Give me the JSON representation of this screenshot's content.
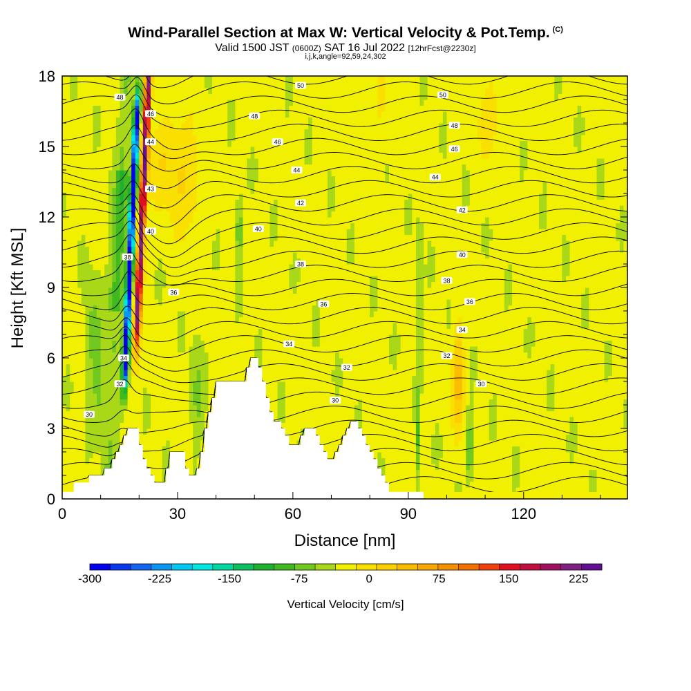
{
  "title": "Wind-Parallel Section at Max W: Vertical Velocity & Pot.Temp.",
  "title_mark": "(C)",
  "subtitle_main": "Valid 1500 JST",
  "subtitle_utc": "(0600Z)",
  "subtitle_date": "SAT 16 Jul 2022",
  "subtitle_fcst": "[12hrFcst@2230z]",
  "subline": "i,j,k,angle=92,59,24,302",
  "chart_data": {
    "type": "heatmap",
    "title": "Wind-Parallel Section at Max W: Vertical Velocity & Pot.Temp.",
    "xlabel": "Distance [nm]",
    "ylabel": "Height [Kft MSL]",
    "xlim": [
      0,
      147
    ],
    "ylim": [
      0,
      18
    ],
    "x_ticks": [
      0,
      30,
      60,
      90,
      120
    ],
    "y_ticks": [
      0,
      3,
      6,
      9,
      12,
      15,
      18
    ],
    "x_tick_labels": [
      "0",
      "30",
      "60",
      "90",
      "120"
    ],
    "y_tick_labels": [
      "0",
      "3",
      "6",
      "9",
      "12",
      "15",
      "18"
    ],
    "colorbar": {
      "title": "Vertical Velocity [cm/s]",
      "min": -300,
      "max": 250,
      "step": 25,
      "tick_values": [
        -300,
        -225,
        -150,
        -75,
        0,
        75,
        150,
        225
      ],
      "tick_labels": [
        "-300",
        "-225",
        "-150",
        "-75",
        "0",
        "75",
        "150",
        "225"
      ],
      "colors": [
        "#0000ee",
        "#0a38ee",
        "#1464f0",
        "#0a96f0",
        "#00c8f0",
        "#00e6e0",
        "#00d8a0",
        "#10c060",
        "#20b030",
        "#40b820",
        "#70c820",
        "#a8d818",
        "#f0f000",
        "#fae000",
        "#fcd000",
        "#fcbc00",
        "#f8a800",
        "#f49000",
        "#f07000",
        "#f04010",
        "#e01020",
        "#c01040",
        "#a01060",
        "#802080",
        "#601090"
      ]
    },
    "terrain": [
      [
        0,
        0.3
      ],
      [
        3,
        0.3
      ],
      [
        3,
        0.7
      ],
      [
        7,
        0.7
      ],
      [
        7,
        1
      ],
      [
        11,
        1
      ],
      [
        11,
        1.3
      ],
      [
        13,
        1.3
      ],
      [
        13,
        1.7
      ],
      [
        14,
        1.7
      ],
      [
        14,
        2
      ],
      [
        15,
        2
      ],
      [
        15,
        2.3
      ],
      [
        16,
        2.3
      ],
      [
        16,
        2.7
      ],
      [
        17,
        2.7
      ],
      [
        17,
        3
      ],
      [
        20,
        3
      ],
      [
        20,
        2.3
      ],
      [
        21,
        2.3
      ],
      [
        21,
        1.7
      ],
      [
        22,
        1.7
      ],
      [
        22,
        1.3
      ],
      [
        23,
        1.3
      ],
      [
        23,
        1
      ],
      [
        24,
        1
      ],
      [
        24,
        0.7
      ],
      [
        27,
        0.7
      ],
      [
        27,
        1.3
      ],
      [
        28,
        1.3
      ],
      [
        28,
        2
      ],
      [
        32,
        2
      ],
      [
        32,
        1.3
      ],
      [
        33,
        1.3
      ],
      [
        33,
        1
      ],
      [
        35,
        1
      ],
      [
        35,
        1.3
      ],
      [
        36,
        1.3
      ],
      [
        36,
        2
      ],
      [
        37,
        2
      ],
      [
        37,
        3
      ],
      [
        38,
        3
      ],
      [
        38,
        3.7
      ],
      [
        39,
        3.7
      ],
      [
        39,
        4.3
      ],
      [
        40,
        4.3
      ],
      [
        40,
        5
      ],
      [
        48,
        5
      ],
      [
        48,
        5.6
      ],
      [
        49,
        5.6
      ],
      [
        49,
        6
      ],
      [
        51,
        6
      ],
      [
        51,
        5.6
      ],
      [
        52,
        5.6
      ],
      [
        52,
        5
      ],
      [
        53,
        5
      ],
      [
        53,
        4.3
      ],
      [
        54,
        4.3
      ],
      [
        54,
        3.7
      ],
      [
        55,
        3.7
      ],
      [
        55,
        3.3
      ],
      [
        57,
        3.3
      ],
      [
        57,
        3
      ],
      [
        58,
        3
      ],
      [
        58,
        2.7
      ],
      [
        59,
        2.7
      ],
      [
        59,
        2.3
      ],
      [
        62,
        2.3
      ],
      [
        62,
        2.7
      ],
      [
        63,
        2.7
      ],
      [
        63,
        3
      ],
      [
        66,
        3
      ],
      [
        66,
        2.7
      ],
      [
        67,
        2.7
      ],
      [
        67,
        2.3
      ],
      [
        68,
        2.3
      ],
      [
        68,
        2
      ],
      [
        69,
        2
      ],
      [
        69,
        1.7
      ],
      [
        71,
        1.7
      ],
      [
        71,
        2
      ],
      [
        72,
        2
      ],
      [
        72,
        2.3
      ],
      [
        73,
        2.3
      ],
      [
        73,
        2.7
      ],
      [
        74,
        2.7
      ],
      [
        74,
        3
      ],
      [
        75,
        3
      ],
      [
        75,
        3.3
      ],
      [
        77,
        3.3
      ],
      [
        77,
        3
      ],
      [
        78,
        3
      ],
      [
        78,
        2.7
      ],
      [
        79,
        2.7
      ],
      [
        79,
        2.3
      ],
      [
        80,
        2.3
      ],
      [
        80,
        2
      ],
      [
        81,
        2
      ],
      [
        81,
        1.7
      ],
      [
        82,
        1.7
      ],
      [
        82,
        1.3
      ],
      [
        83,
        1.3
      ],
      [
        83,
        1
      ],
      [
        84,
        1
      ],
      [
        84,
        0.7
      ],
      [
        85,
        0.7
      ],
      [
        85,
        0.3
      ],
      [
        94,
        0.3
      ],
      [
        94,
        0
      ],
      [
        147,
        0
      ]
    ],
    "theta_contour_levels": [
      30,
      32,
      34,
      36,
      38,
      40,
      42,
      44,
      46,
      48,
      50
    ],
    "theta_contour_labels": [
      {
        "level": 30,
        "x": 7,
        "y": 3.6
      },
      {
        "level": 32,
        "x": 15,
        "y": 4.9
      },
      {
        "level": 34,
        "x": 16,
        "y": 6
      },
      {
        "level": 30,
        "x": 71,
        "y": 4.2
      },
      {
        "level": 32,
        "x": 74,
        "y": 5.6
      },
      {
        "level": 34,
        "x": 59,
        "y": 6.6
      },
      {
        "level": 36,
        "x": 68,
        "y": 8.3
      },
      {
        "level": 38,
        "x": 62,
        "y": 10
      },
      {
        "level": 36,
        "x": 29,
        "y": 8.8
      },
      {
        "level": 38,
        "x": 17,
        "y": 10.3
      },
      {
        "level": 40,
        "x": 23,
        "y": 11.4
      },
      {
        "level": 40,
        "x": 51,
        "y": 11.5
      },
      {
        "level": 42,
        "x": 62,
        "y": 12.6
      },
      {
        "level": 43,
        "x": 23,
        "y": 13.2
      },
      {
        "level": 44,
        "x": 61,
        "y": 14
      },
      {
        "level": 44,
        "x": 23,
        "y": 15.2
      },
      {
        "level": 46,
        "x": 56,
        "y": 15.2
      },
      {
        "level": 46,
        "x": 23,
        "y": 16.4
      },
      {
        "level": 48,
        "x": 50,
        "y": 16.3
      },
      {
        "level": 48,
        "x": 15,
        "y": 17.1
      },
      {
        "level": 50,
        "x": 62,
        "y": 17.6
      },
      {
        "level": 50,
        "x": 99,
        "y": 17.2
      },
      {
        "level": 48,
        "x": 102,
        "y": 15.9
      },
      {
        "level": 46,
        "x": 102,
        "y": 14.9
      },
      {
        "level": 44,
        "x": 97,
        "y": 13.7
      },
      {
        "level": 42,
        "x": 104,
        "y": 12.3
      },
      {
        "level": 40,
        "x": 104,
        "y": 10.4
      },
      {
        "level": 38,
        "x": 100,
        "y": 9.3
      },
      {
        "level": 36,
        "x": 106,
        "y": 8.4
      },
      {
        "level": 34,
        "x": 104,
        "y": 7.2
      },
      {
        "level": 32,
        "x": 100,
        "y": 6.1
      },
      {
        "level": 30,
        "x": 109,
        "y": 4.9
      }
    ]
  }
}
